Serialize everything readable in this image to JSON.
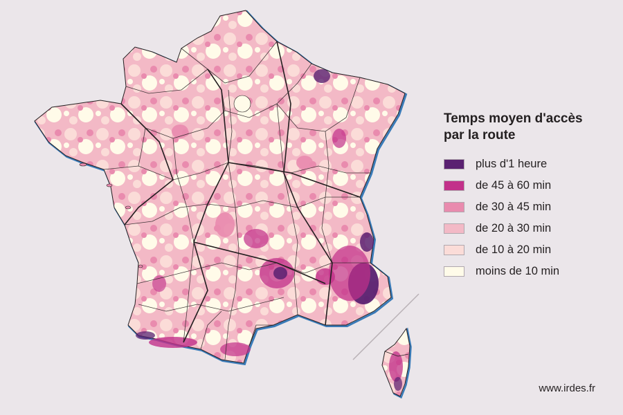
{
  "legend": {
    "title_line1": "Temps moyen d'accès",
    "title_line2": "par la route",
    "items": [
      {
        "label": "plus d'1 heure",
        "color": "#5a2171"
      },
      {
        "label": "de 45 à 60 min",
        "color": "#c2318a"
      },
      {
        "label": "de 30 à 45 min",
        "color": "#e98bae"
      },
      {
        "label": "de 20 à 30 min",
        "color": "#f3b9c6"
      },
      {
        "label": "de 10 à 20 min",
        "color": "#fbdcd8"
      },
      {
        "label": "moins de 10 min",
        "color": "#fffbe9"
      }
    ]
  },
  "credit": "www.irdes.fr",
  "colors": {
    "background": "#ebe6ea",
    "border": "#231f20",
    "coast_shadow": "#3a7bb8"
  }
}
